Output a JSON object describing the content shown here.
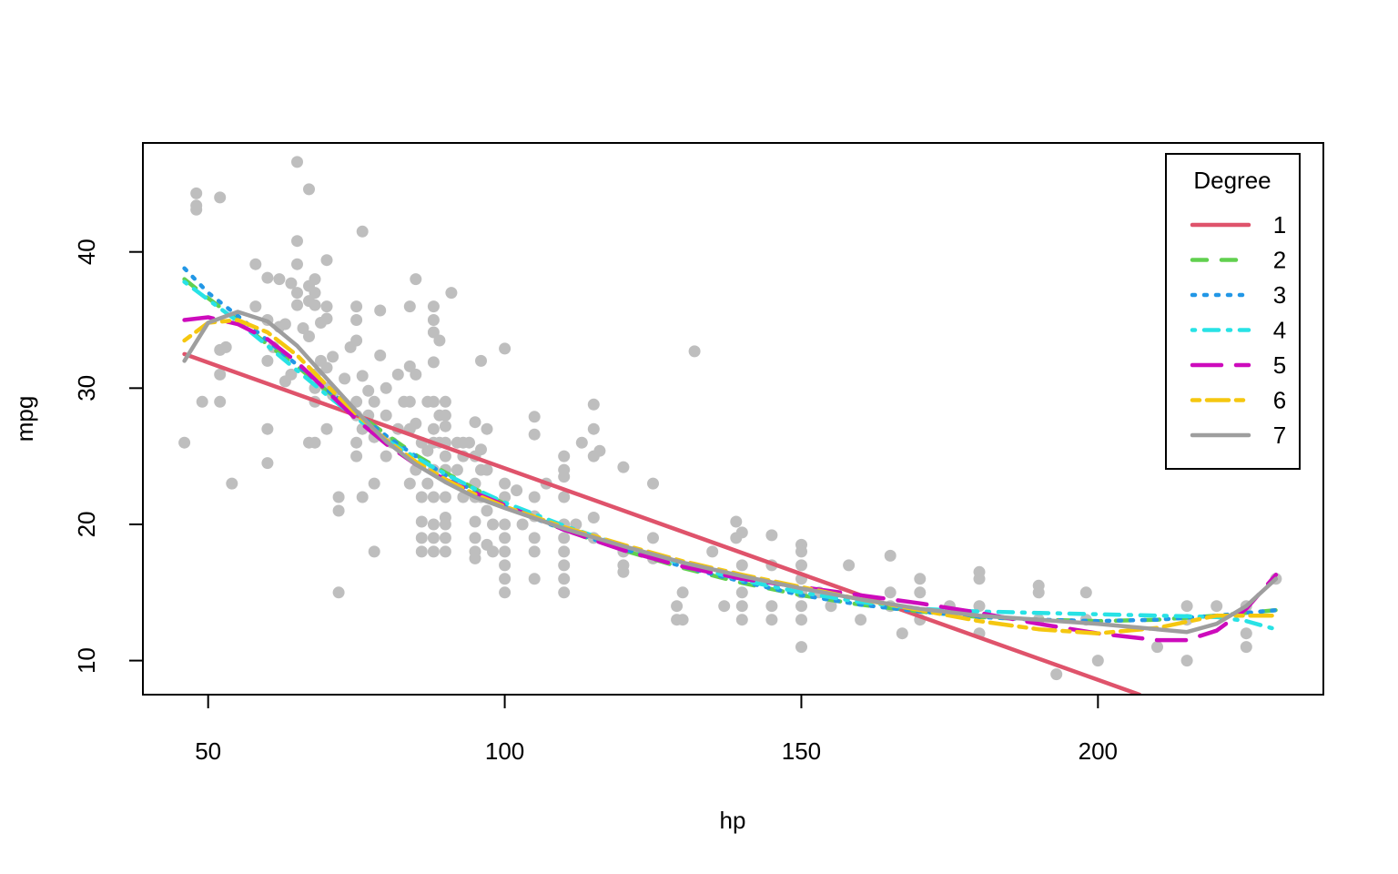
{
  "chart_data": {
    "type": "scatter",
    "xlabel": "hp",
    "ylabel": "mpg",
    "xlim": [
      39,
      238
    ],
    "ylim": [
      7.5,
      48
    ],
    "x_ticks": [
      50,
      100,
      150,
      200
    ],
    "y_ticks": [
      10,
      20,
      30,
      40
    ],
    "grid": false,
    "legend": {
      "title": "Degree",
      "position": "top-right",
      "entries": [
        {
          "label": "1",
          "color": "#DF536B",
          "dash": "solid"
        },
        {
          "label": "2",
          "color": "#61D04F",
          "dash": "dashed"
        },
        {
          "label": "3",
          "color": "#2297E6",
          "dash": "dotted"
        },
        {
          "label": "4",
          "color": "#28E2E5",
          "dash": "dotdash"
        },
        {
          "label": "5",
          "color": "#CD0BBC",
          "dash": "longdash"
        },
        {
          "label": "6",
          "color": "#F5C710",
          "dash": "twodash"
        },
        {
          "label": "7",
          "color": "#9E9E9E",
          "dash": "solid"
        }
      ]
    },
    "point_color": "#BEBEBE",
    "points": [
      [
        46,
        26
      ],
      [
        48,
        43.1
      ],
      [
        48,
        43.4
      ],
      [
        48,
        44.3
      ],
      [
        49,
        29
      ],
      [
        52,
        44
      ],
      [
        52,
        32.8
      ],
      [
        52,
        31
      ],
      [
        52,
        29
      ],
      [
        53,
        33
      ],
      [
        54,
        23
      ],
      [
        58,
        39.1
      ],
      [
        58,
        36
      ],
      [
        60,
        38.1
      ],
      [
        60,
        35
      ],
      [
        60,
        32
      ],
      [
        60,
        27
      ],
      [
        60,
        24.5
      ],
      [
        61,
        33
      ],
      [
        62,
        38
      ],
      [
        62,
        34.5
      ],
      [
        63,
        34.7
      ],
      [
        63,
        30.5
      ],
      [
        64,
        37.7
      ],
      [
        64,
        31
      ],
      [
        65,
        46.6
      ],
      [
        65,
        40.8
      ],
      [
        65,
        39.1
      ],
      [
        65,
        37
      ],
      [
        65,
        36.1
      ],
      [
        66,
        34.4
      ],
      [
        67,
        44.6
      ],
      [
        67,
        37.5
      ],
      [
        67,
        36.4
      ],
      [
        67,
        33.8
      ],
      [
        67,
        26
      ],
      [
        68,
        30
      ],
      [
        68,
        38
      ],
      [
        68,
        37
      ],
      [
        68,
        36.1
      ],
      [
        68,
        31
      ],
      [
        68,
        29
      ],
      [
        68,
        26
      ],
      [
        69,
        34.8
      ],
      [
        69,
        32
      ],
      [
        70,
        39.4
      ],
      [
        70,
        36
      ],
      [
        70,
        35.1
      ],
      [
        70,
        31.5
      ],
      [
        70,
        30
      ],
      [
        70,
        27
      ],
      [
        71,
        32.3
      ],
      [
        71,
        29.5
      ],
      [
        72,
        22
      ],
      [
        72,
        21
      ],
      [
        72,
        15
      ],
      [
        73,
        30.7
      ],
      [
        74,
        33
      ],
      [
        75,
        36
      ],
      [
        75,
        35
      ],
      [
        75,
        33.5
      ],
      [
        75,
        29
      ],
      [
        75,
        28
      ],
      [
        75,
        26
      ],
      [
        75,
        25
      ],
      [
        76,
        41.5
      ],
      [
        76,
        30.9
      ],
      [
        76,
        27
      ],
      [
        76,
        22
      ],
      [
        77,
        29.8
      ],
      [
        77,
        28
      ],
      [
        78,
        29
      ],
      [
        78,
        26.4
      ],
      [
        78,
        23
      ],
      [
        78,
        18
      ],
      [
        79,
        35.7
      ],
      [
        79,
        32.4
      ],
      [
        80,
        30
      ],
      [
        80,
        28
      ],
      [
        80,
        25
      ],
      [
        81,
        26
      ],
      [
        82,
        31
      ],
      [
        82,
        27
      ],
      [
        83,
        29
      ],
      [
        84,
        36
      ],
      [
        84,
        31.6
      ],
      [
        84,
        29
      ],
      [
        84,
        27
      ],
      [
        84,
        23
      ],
      [
        85,
        38
      ],
      [
        85,
        31
      ],
      [
        85,
        27.4
      ],
      [
        85,
        24
      ],
      [
        86,
        26
      ],
      [
        86,
        22
      ],
      [
        86,
        20.2
      ],
      [
        86,
        19
      ],
      [
        86,
        18
      ],
      [
        87,
        29
      ],
      [
        87,
        25.4
      ],
      [
        87,
        23
      ],
      [
        88,
        36
      ],
      [
        88,
        35
      ],
      [
        88,
        34.1
      ],
      [
        88,
        31.9
      ],
      [
        88,
        29
      ],
      [
        88,
        27
      ],
      [
        88,
        26
      ],
      [
        88,
        24
      ],
      [
        88,
        22
      ],
      [
        88,
        20
      ],
      [
        88,
        19
      ],
      [
        88,
        18
      ],
      [
        89,
        33.5
      ],
      [
        89,
        28
      ],
      [
        89,
        26
      ],
      [
        90,
        29
      ],
      [
        90,
        28
      ],
      [
        90,
        27.2
      ],
      [
        90,
        26
      ],
      [
        90,
        25
      ],
      [
        90,
        24
      ],
      [
        90,
        22
      ],
      [
        90,
        20.5
      ],
      [
        90,
        20
      ],
      [
        90,
        19
      ],
      [
        90,
        18
      ],
      [
        91,
        37
      ],
      [
        92,
        26
      ],
      [
        92,
        24
      ],
      [
        93,
        26
      ],
      [
        93,
        25
      ],
      [
        93,
        22
      ],
      [
        94,
        26
      ],
      [
        95,
        27.5
      ],
      [
        95,
        25
      ],
      [
        95,
        23
      ],
      [
        95,
        22
      ],
      [
        95,
        20.2
      ],
      [
        95,
        19
      ],
      [
        95,
        18
      ],
      [
        95,
        17.5
      ],
      [
        96,
        32
      ],
      [
        96,
        25.5
      ],
      [
        96,
        24
      ],
      [
        96,
        22
      ],
      [
        97,
        27
      ],
      [
        97,
        24
      ],
      [
        97,
        21
      ],
      [
        97,
        18.5
      ],
      [
        98,
        20
      ],
      [
        98,
        18
      ],
      [
        100,
        32.9
      ],
      [
        100,
        23
      ],
      [
        100,
        22
      ],
      [
        100,
        20
      ],
      [
        100,
        19
      ],
      [
        100,
        18
      ],
      [
        100,
        17
      ],
      [
        100,
        16
      ],
      [
        100,
        15
      ],
      [
        102,
        22.5
      ],
      [
        103,
        20
      ],
      [
        105,
        27.9
      ],
      [
        105,
        26.6
      ],
      [
        105,
        22
      ],
      [
        105,
        20.6
      ],
      [
        105,
        19
      ],
      [
        105,
        18
      ],
      [
        105,
        16
      ],
      [
        107,
        23
      ],
      [
        110,
        25
      ],
      [
        110,
        24
      ],
      [
        110,
        23.5
      ],
      [
        110,
        22
      ],
      [
        110,
        20
      ],
      [
        110,
        19
      ],
      [
        110,
        18
      ],
      [
        110,
        17
      ],
      [
        110,
        16
      ],
      [
        110,
        15
      ],
      [
        112,
        20
      ],
      [
        113,
        26
      ],
      [
        115,
        28.8
      ],
      [
        115,
        27
      ],
      [
        115,
        25
      ],
      [
        115,
        20.5
      ],
      [
        115,
        19
      ],
      [
        116,
        25.4
      ],
      [
        120,
        24.2
      ],
      [
        120,
        18
      ],
      [
        120,
        17
      ],
      [
        120,
        16.5
      ],
      [
        125,
        23
      ],
      [
        125,
        19
      ],
      [
        125,
        17.5
      ],
      [
        129,
        14
      ],
      [
        129,
        13
      ],
      [
        130,
        13
      ],
      [
        130,
        15
      ],
      [
        132,
        32.7
      ],
      [
        135,
        18
      ],
      [
        137,
        14
      ],
      [
        139,
        20.2
      ],
      [
        139,
        19
      ],
      [
        140,
        19.4
      ],
      [
        140,
        17
      ],
      [
        140,
        15
      ],
      [
        140,
        14
      ],
      [
        140,
        13
      ],
      [
        145,
        19.2
      ],
      [
        145,
        17
      ],
      [
        145,
        14
      ],
      [
        145,
        13
      ],
      [
        150,
        18.5
      ],
      [
        150,
        18
      ],
      [
        150,
        17
      ],
      [
        150,
        16
      ],
      [
        150,
        15
      ],
      [
        150,
        14
      ],
      [
        150,
        13
      ],
      [
        150,
        11
      ],
      [
        153,
        15
      ],
      [
        155,
        14
      ],
      [
        158,
        17
      ],
      [
        160,
        13
      ],
      [
        165,
        17.7
      ],
      [
        165,
        15
      ],
      [
        165,
        14
      ],
      [
        167,
        12
      ],
      [
        170,
        16
      ],
      [
        170,
        15
      ],
      [
        170,
        13
      ],
      [
        175,
        14
      ],
      [
        180,
        16.5
      ],
      [
        180,
        16
      ],
      [
        180,
        14
      ],
      [
        180,
        12
      ],
      [
        190,
        15.5
      ],
      [
        190,
        15
      ],
      [
        190,
        13
      ],
      [
        193,
        9
      ],
      [
        198,
        15
      ],
      [
        198,
        13
      ],
      [
        200,
        10
      ],
      [
        210,
        11
      ],
      [
        215,
        14
      ],
      [
        215,
        13
      ],
      [
        215,
        10
      ],
      [
        220,
        14
      ],
      [
        225,
        14
      ],
      [
        225,
        12
      ],
      [
        225,
        11
      ],
      [
        230,
        16
      ]
    ],
    "fitted_curves": [
      {
        "name": "1",
        "x": [
          46,
          207
        ],
        "y": [
          32.5,
          7.5
        ]
      },
      {
        "name": "2",
        "x": [
          46,
          50,
          55,
          60,
          65,
          70,
          75,
          80,
          85,
          90,
          95,
          100,
          110,
          120,
          130,
          140,
          150,
          160,
          170,
          180,
          190,
          200,
          210,
          220,
          230
        ],
        "y": [
          38,
          36.6,
          35,
          33.2,
          31.6,
          29.8,
          28.2,
          26.6,
          25.1,
          23.8,
          22.6,
          21.5,
          19.6,
          18.1,
          16.8,
          15.7,
          14.8,
          14.1,
          13.6,
          13.2,
          13,
          12.9,
          13,
          13.3,
          13.7
        ]
      },
      {
        "name": "3",
        "x": [
          46,
          50,
          55,
          60,
          65,
          70,
          75,
          80,
          85,
          90,
          95,
          100,
          110,
          120,
          130,
          140,
          150,
          160,
          170,
          180,
          190,
          200,
          210,
          220,
          230
        ],
        "y": [
          38.8,
          37,
          35.3,
          33.5,
          31.7,
          29.9,
          28.2,
          26.5,
          25,
          23.6,
          22.4,
          21.3,
          19.6,
          18.2,
          16.9,
          15.8,
          14.8,
          14.1,
          13.6,
          13.2,
          13,
          12.9,
          13,
          13.3,
          13.7
        ]
      },
      {
        "name": "4",
        "x": [
          46,
          50,
          55,
          60,
          65,
          70,
          75,
          80,
          85,
          90,
          95,
          100,
          110,
          120,
          130,
          140,
          150,
          160,
          170,
          180,
          190,
          200,
          210,
          220,
          225,
          230
        ],
        "y": [
          37.8,
          36.5,
          34.9,
          33.1,
          31.3,
          29.5,
          27.8,
          26.2,
          24.9,
          23.7,
          22.6,
          21.6,
          19.9,
          18.4,
          17.1,
          15.9,
          15,
          14.3,
          13.8,
          13.6,
          13.5,
          13.4,
          13.3,
          13.2,
          12.9,
          12.3
        ]
      },
      {
        "name": "5",
        "x": [
          46,
          50,
          55,
          60,
          65,
          70,
          75,
          80,
          85,
          90,
          95,
          100,
          110,
          120,
          130,
          140,
          150,
          160,
          170,
          180,
          190,
          200,
          210,
          215,
          220,
          225,
          230
        ],
        "y": [
          35,
          35.2,
          34.7,
          33.6,
          31.9,
          29.8,
          27.7,
          25.9,
          24.4,
          23.3,
          22.3,
          21.4,
          19.6,
          18.1,
          16.9,
          16,
          15.4,
          14.8,
          14.2,
          13.5,
          12.7,
          12,
          11.5,
          11.5,
          12.2,
          13.8,
          16.3
        ]
      },
      {
        "name": "6",
        "x": [
          46,
          50,
          55,
          60,
          65,
          70,
          75,
          80,
          85,
          90,
          95,
          100,
          110,
          120,
          130,
          140,
          150,
          160,
          170,
          180,
          190,
          200,
          210,
          220,
          230
        ],
        "y": [
          33.5,
          34.8,
          35,
          34.1,
          32.4,
          30.2,
          28.1,
          26.2,
          24.6,
          23.3,
          22.2,
          21.3,
          19.8,
          18.5,
          17.3,
          16.3,
          15.4,
          14.5,
          13.7,
          12.9,
          12.3,
          12,
          12.4,
          13.3,
          13.3
        ]
      },
      {
        "name": "7",
        "x": [
          46,
          50,
          55,
          60,
          65,
          70,
          75,
          80,
          85,
          90,
          95,
          100,
          110,
          120,
          130,
          140,
          150,
          160,
          170,
          180,
          190,
          200,
          210,
          215,
          220,
          225,
          230
        ],
        "y": [
          32,
          34.8,
          35.6,
          34.9,
          33.1,
          30.7,
          28.3,
          26.1,
          24.4,
          23.1,
          22,
          21.2,
          19.7,
          18.4,
          17.2,
          16.2,
          15.3,
          14.5,
          13.8,
          13.3,
          13,
          12.7,
          12.3,
          12.1,
          12.7,
          14,
          16
        ]
      }
    ]
  }
}
